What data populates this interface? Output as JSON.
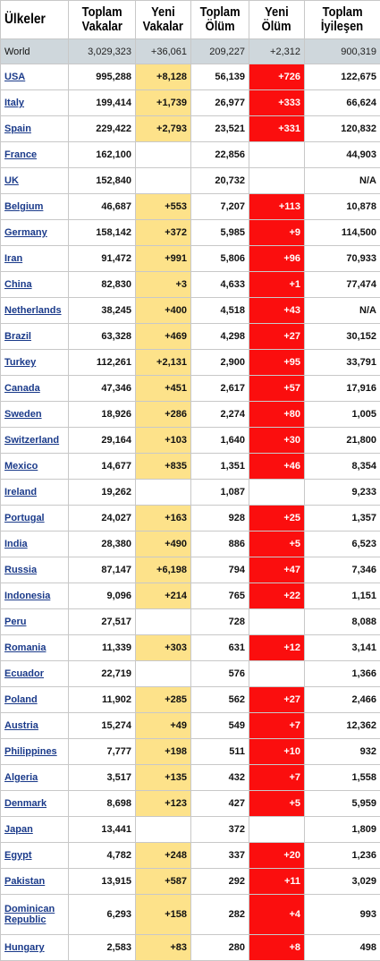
{
  "headers": [
    [
      "Ülkeler"
    ],
    [
      "Toplam",
      "Vakalar"
    ],
    [
      "Yeni",
      "Vakalar"
    ],
    [
      "Toplam",
      "Ölüm"
    ],
    [
      "Yeni",
      "Ölüm"
    ],
    [
      "Toplam",
      "İyileşen"
    ]
  ],
  "world": {
    "name": "World",
    "total_cases": "3,029,323",
    "new_cases": "+36,061",
    "total_deaths": "209,227",
    "new_deaths": "+2,312",
    "recovered": "900,319"
  },
  "rows": [
    {
      "name": "USA",
      "total_cases": "995,288",
      "new_cases": "+8,128",
      "total_deaths": "56,139",
      "new_deaths": "+726",
      "recovered": "122,675"
    },
    {
      "name": "Italy",
      "total_cases": "199,414",
      "new_cases": "+1,739",
      "total_deaths": "26,977",
      "new_deaths": "+333",
      "recovered": "66,624"
    },
    {
      "name": "Spain",
      "total_cases": "229,422",
      "new_cases": "+2,793",
      "total_deaths": "23,521",
      "new_deaths": "+331",
      "recovered": "120,832"
    },
    {
      "name": "France",
      "total_cases": "162,100",
      "new_cases": "",
      "total_deaths": "22,856",
      "new_deaths": "",
      "recovered": "44,903"
    },
    {
      "name": "UK",
      "total_cases": "152,840",
      "new_cases": "",
      "total_deaths": "20,732",
      "new_deaths": "",
      "recovered": "N/A"
    },
    {
      "name": "Belgium",
      "total_cases": "46,687",
      "new_cases": "+553",
      "total_deaths": "7,207",
      "new_deaths": "+113",
      "recovered": "10,878"
    },
    {
      "name": "Germany",
      "total_cases": "158,142",
      "new_cases": "+372",
      "total_deaths": "5,985",
      "new_deaths": "+9",
      "recovered": "114,500"
    },
    {
      "name": "Iran",
      "total_cases": "91,472",
      "new_cases": "+991",
      "total_deaths": "5,806",
      "new_deaths": "+96",
      "recovered": "70,933"
    },
    {
      "name": "China",
      "total_cases": "82,830",
      "new_cases": "+3",
      "total_deaths": "4,633",
      "new_deaths": "+1",
      "recovered": "77,474"
    },
    {
      "name": "Netherlands",
      "total_cases": "38,245",
      "new_cases": "+400",
      "total_deaths": "4,518",
      "new_deaths": "+43",
      "recovered": "N/A"
    },
    {
      "name": "Brazil",
      "total_cases": "63,328",
      "new_cases": "+469",
      "total_deaths": "4,298",
      "new_deaths": "+27",
      "recovered": "30,152"
    },
    {
      "name": "Turkey",
      "total_cases": "112,261",
      "new_cases": "+2,131",
      "total_deaths": "2,900",
      "new_deaths": "+95",
      "recovered": "33,791"
    },
    {
      "name": "Canada",
      "total_cases": "47,346",
      "new_cases": "+451",
      "total_deaths": "2,617",
      "new_deaths": "+57",
      "recovered": "17,916"
    },
    {
      "name": "Sweden",
      "total_cases": "18,926",
      "new_cases": "+286",
      "total_deaths": "2,274",
      "new_deaths": "+80",
      "recovered": "1,005"
    },
    {
      "name": "Switzerland",
      "total_cases": "29,164",
      "new_cases": "+103",
      "total_deaths": "1,640",
      "new_deaths": "+30",
      "recovered": "21,800"
    },
    {
      "name": "Mexico",
      "total_cases": "14,677",
      "new_cases": "+835",
      "total_deaths": "1,351",
      "new_deaths": "+46",
      "recovered": "8,354"
    },
    {
      "name": "Ireland",
      "total_cases": "19,262",
      "new_cases": "",
      "total_deaths": "1,087",
      "new_deaths": "",
      "recovered": "9,233"
    },
    {
      "name": "Portugal",
      "total_cases": "24,027",
      "new_cases": "+163",
      "total_deaths": "928",
      "new_deaths": "+25",
      "recovered": "1,357"
    },
    {
      "name": "India",
      "total_cases": "28,380",
      "new_cases": "+490",
      "total_deaths": "886",
      "new_deaths": "+5",
      "recovered": "6,523"
    },
    {
      "name": "Russia",
      "total_cases": "87,147",
      "new_cases": "+6,198",
      "total_deaths": "794",
      "new_deaths": "+47",
      "recovered": "7,346"
    },
    {
      "name": "Indonesia",
      "total_cases": "9,096",
      "new_cases": "+214",
      "total_deaths": "765",
      "new_deaths": "+22",
      "recovered": "1,151"
    },
    {
      "name": "Peru",
      "total_cases": "27,517",
      "new_cases": "",
      "total_deaths": "728",
      "new_deaths": "",
      "recovered": "8,088"
    },
    {
      "name": "Romania",
      "total_cases": "11,339",
      "new_cases": "+303",
      "total_deaths": "631",
      "new_deaths": "+12",
      "recovered": "3,141"
    },
    {
      "name": "Ecuador",
      "total_cases": "22,719",
      "new_cases": "",
      "total_deaths": "576",
      "new_deaths": "",
      "recovered": "1,366"
    },
    {
      "name": "Poland",
      "total_cases": "11,902",
      "new_cases": "+285",
      "total_deaths": "562",
      "new_deaths": "+27",
      "recovered": "2,466"
    },
    {
      "name": "Austria",
      "total_cases": "15,274",
      "new_cases": "+49",
      "total_deaths": "549",
      "new_deaths": "+7",
      "recovered": "12,362"
    },
    {
      "name": "Philippines",
      "total_cases": "7,777",
      "new_cases": "+198",
      "total_deaths": "511",
      "new_deaths": "+10",
      "recovered": "932"
    },
    {
      "name": "Algeria",
      "total_cases": "3,517",
      "new_cases": "+135",
      "total_deaths": "432",
      "new_deaths": "+7",
      "recovered": "1,558"
    },
    {
      "name": "Denmark",
      "total_cases": "8,698",
      "new_cases": "+123",
      "total_deaths": "427",
      "new_deaths": "+5",
      "recovered": "5,959"
    },
    {
      "name": "Japan",
      "total_cases": "13,441",
      "new_cases": "",
      "total_deaths": "372",
      "new_deaths": "",
      "recovered": "1,809"
    },
    {
      "name": "Egypt",
      "total_cases": "4,782",
      "new_cases": "+248",
      "total_deaths": "337",
      "new_deaths": "+20",
      "recovered": "1,236"
    },
    {
      "name": "Pakistan",
      "total_cases": "13,915",
      "new_cases": "+587",
      "total_deaths": "292",
      "new_deaths": "+11",
      "recovered": "3,029"
    },
    {
      "name": "Dominican Republic",
      "total_cases": "6,293",
      "new_cases": "+158",
      "total_deaths": "282",
      "new_deaths": "+4",
      "recovered": "993"
    },
    {
      "name": "Hungary",
      "total_cases": "2,583",
      "new_cases": "+83",
      "total_deaths": "280",
      "new_deaths": "+8",
      "recovered": "498"
    }
  ],
  "colors": {
    "new_cases_bg": "#fde28a",
    "new_deaths_bg": "#fb0e0e",
    "world_bg": "#cfd7dc",
    "link": "#1a3a8a"
  }
}
